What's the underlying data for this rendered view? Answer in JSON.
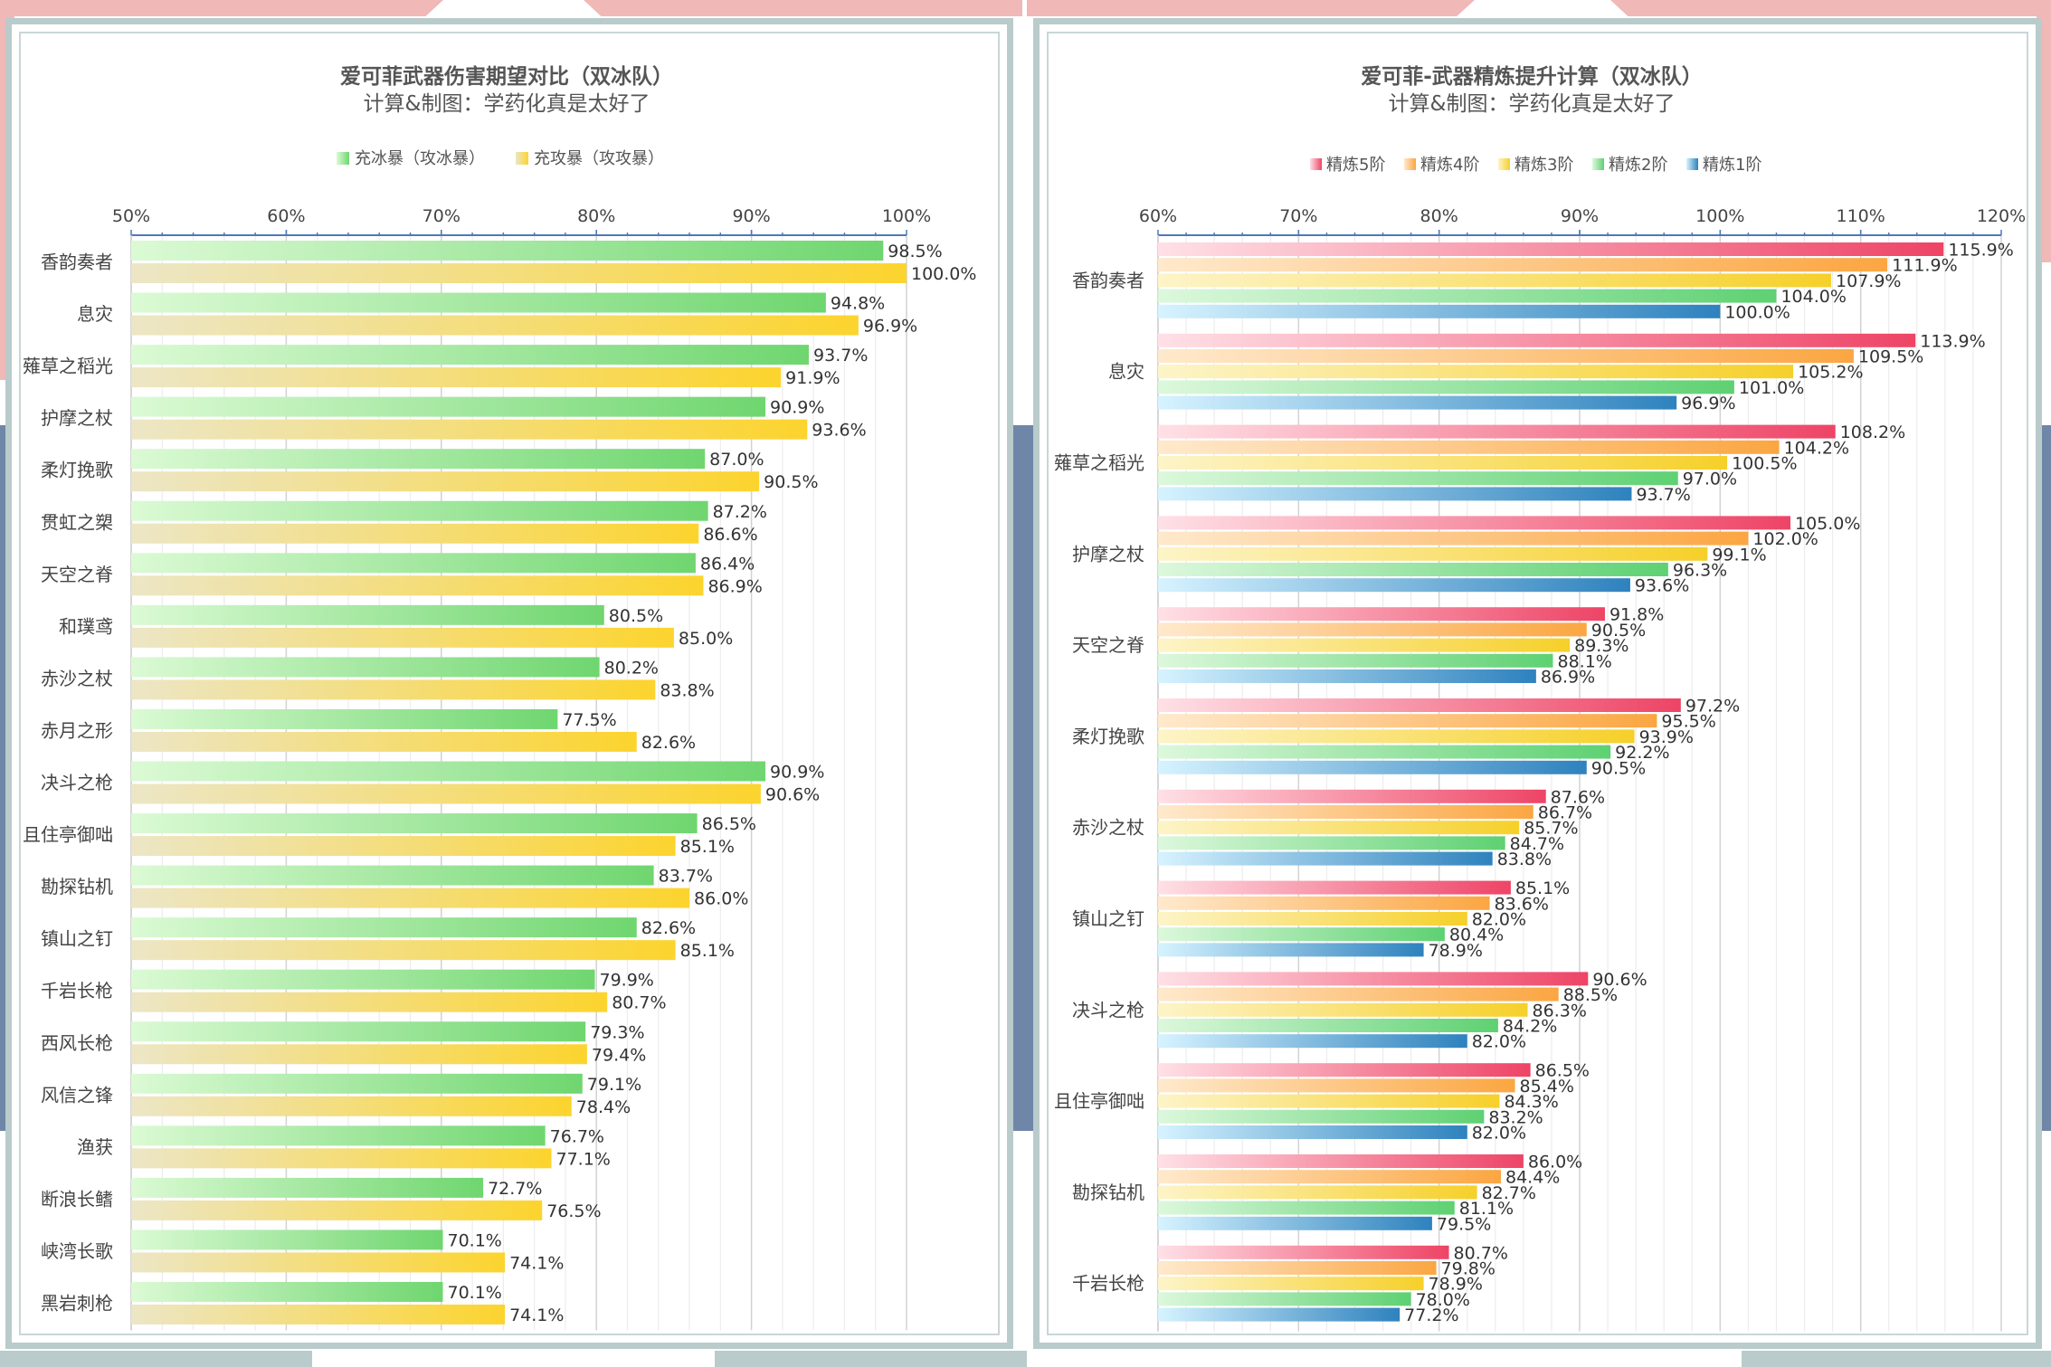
{
  "chart_data": [
    {
      "type": "bar",
      "title": "爱可菲武器伤害期望对比（双冰队）",
      "subtitle": "计算&制图：学药化真是太好了",
      "xlim": [
        50,
        100
      ],
      "ticks": [
        "50%",
        "60%",
        "70%",
        "80%",
        "90%",
        "100%"
      ],
      "legend_position": "top",
      "grid": true,
      "categories": [
        "香韵奏者",
        "息灾",
        "薙草之稻光",
        "护摩之杖",
        "柔灯挽歌",
        "贯虹之槊",
        "天空之脊",
        "和璞鸢",
        "赤沙之杖",
        "赤月之形",
        "决斗之枪",
        "且住亭御咄",
        "勘探钻机",
        "镇山之钉",
        "千岩长枪",
        "西风长枪",
        "风信之锋",
        "渔获",
        "断浪长鳍",
        "峡湾长歌",
        "黑岩刺枪"
      ],
      "series": [
        {
          "name": "充冰暴（攻冰暴）",
          "color": "#6fd66f",
          "color_light": "#dbfad4",
          "values": [
            98.5,
            94.8,
            93.7,
            90.9,
            87.0,
            87.2,
            86.4,
            80.5,
            80.2,
            77.5,
            90.9,
            86.5,
            83.7,
            82.6,
            79.9,
            79.3,
            79.1,
            76.7,
            72.7,
            70.1,
            70.1
          ],
          "labels": [
            "98.5%",
            "94.8%",
            "93.7%",
            "90.9%",
            "87.0%",
            "87.2%",
            "86.4%",
            "80.5%",
            "80.2%",
            "77.5%",
            "90.9%",
            "86.5%",
            "83.7%",
            "82.6%",
            "79.9%",
            "79.3%",
            "79.1%",
            "76.7%",
            "72.7%",
            "70.1%",
            "70.1%"
          ]
        },
        {
          "name": "充攻暴（攻攻暴）",
          "color": "#fcd42e",
          "color_light": "#ece6c6",
          "values": [
            100.0,
            96.9,
            91.9,
            93.6,
            90.5,
            86.6,
            86.9,
            85.0,
            83.8,
            82.6,
            90.6,
            85.1,
            86.0,
            85.1,
            80.7,
            79.4,
            78.4,
            77.1,
            76.5,
            74.1,
            74.1
          ],
          "labels": [
            "100.0%",
            "96.9%",
            "91.9%",
            "93.6%",
            "90.5%",
            "86.6%",
            "86.9%",
            "85.0%",
            "83.8%",
            "82.6%",
            "90.6%",
            "85.1%",
            "86.0%",
            "85.1%",
            "80.7%",
            "79.4%",
            "78.4%",
            "77.1%",
            "76.5%",
            "74.1%",
            "74.1%"
          ]
        }
      ]
    },
    {
      "type": "bar",
      "title": "爱可菲-武器精炼提升计算（双冰队）",
      "subtitle": "计算&制图：学药化真是太好了",
      "xlim": [
        60,
        120
      ],
      "ticks": [
        "60%",
        "70%",
        "80%",
        "90%",
        "100%",
        "110%",
        "120%"
      ],
      "legend_position": "top",
      "grid": true,
      "categories": [
        "香韵奏者",
        "息灾",
        "薙草之稻光",
        "护摩之杖",
        "天空之脊",
        "柔灯挽歌",
        "赤沙之杖",
        "镇山之钉",
        "决斗之枪",
        "且住亭御咄",
        "勘探钻机",
        "千岩长枪"
      ],
      "series": [
        {
          "name": "精炼5阶",
          "color": "#ee4466",
          "color_light": "#ffe0e6",
          "values": [
            115.9,
            113.9,
            108.2,
            105.0,
            91.8,
            97.2,
            87.6,
            85.1,
            90.6,
            86.5,
            86.0,
            80.7
          ],
          "labels": [
            "115.9%",
            "113.9%",
            "108.2%",
            "105.0%",
            "91.8%",
            "97.2%",
            "87.6%",
            "85.1%",
            "90.6%",
            "86.5%",
            "86.0%",
            "80.7%"
          ]
        },
        {
          "name": "精炼4阶",
          "color": "#fba642",
          "color_light": "#ffe9cc",
          "values": [
            111.9,
            109.5,
            104.2,
            102.0,
            90.5,
            95.5,
            86.7,
            83.6,
            88.5,
            85.4,
            84.4,
            79.8
          ],
          "labels": [
            "111.9%",
            "109.5%",
            "104.2%",
            "102.0%",
            "90.5%",
            "95.5%",
            "86.7%",
            "83.6%",
            "88.5%",
            "85.4%",
            "84.4%",
            "79.8%"
          ]
        },
        {
          "name": "精炼3阶",
          "color": "#f6d02a",
          "color_light": "#fdf4c8",
          "values": [
            107.9,
            105.2,
            100.5,
            99.1,
            89.3,
            93.9,
            85.7,
            82.0,
            86.3,
            84.3,
            82.7,
            78.9
          ],
          "labels": [
            "107.9%",
            "105.2%",
            "100.5%",
            "99.1%",
            "89.3%",
            "93.9%",
            "85.7%",
            "82.0%",
            "86.3%",
            "84.3%",
            "82.7%",
            "78.9%"
          ]
        },
        {
          "name": "精炼2阶",
          "color": "#5ed172",
          "color_light": "#dcf8dc",
          "values": [
            104.0,
            101.0,
            97.0,
            96.3,
            88.1,
            92.2,
            84.7,
            80.4,
            84.2,
            83.2,
            81.1,
            78.0
          ],
          "labels": [
            "104.0%",
            "101.0%",
            "97.0%",
            "96.3%",
            "88.1%",
            "92.2%",
            "84.7%",
            "80.4%",
            "84.2%",
            "83.2%",
            "81.1%",
            "78.0%"
          ]
        },
        {
          "name": "精炼1阶",
          "color": "#2e82be",
          "color_light": "#d6f3ff",
          "values": [
            100.0,
            96.9,
            93.7,
            93.6,
            86.9,
            90.5,
            83.8,
            78.9,
            82.0,
            82.0,
            79.5,
            77.2
          ],
          "labels": [
            "100.0%",
            "96.9%",
            "93.7%",
            "93.6%",
            "86.9%",
            "90.5%",
            "83.8%",
            "78.9%",
            "82.0%",
            "82.0%",
            "79.5%",
            "77.2%"
          ]
        }
      ]
    }
  ]
}
